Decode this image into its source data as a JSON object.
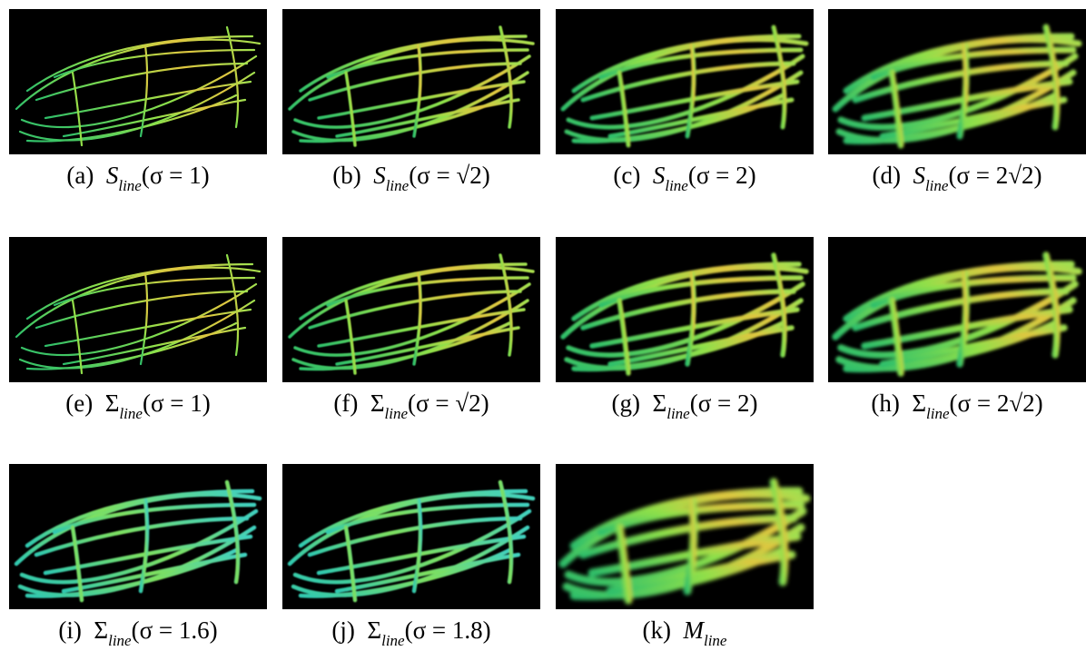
{
  "panels": [
    {
      "label": "(a)",
      "symbol": "S",
      "subscript": "line",
      "argument": "(σ = 1)"
    },
    {
      "label": "(b)",
      "symbol": "S",
      "subscript": "line",
      "argument": "(σ = √2)"
    },
    {
      "label": "(c)",
      "symbol": "S",
      "subscript": "line",
      "argument": "(σ = 2)"
    },
    {
      "label": "(d)",
      "symbol": "S",
      "subscript": "line",
      "argument": "(σ = 2√2)"
    },
    {
      "label": "(e)",
      "symbol": "Σ",
      "subscript": "line",
      "argument": "(σ = 1)"
    },
    {
      "label": "(f)",
      "symbol": "Σ",
      "subscript": "line",
      "argument": "(σ = √2)"
    },
    {
      "label": "(g)",
      "symbol": "Σ",
      "subscript": "line",
      "argument": "(σ = 2)"
    },
    {
      "label": "(h)",
      "symbol": "Σ",
      "subscript": "line",
      "argument": "(σ = 2√2)"
    },
    {
      "label": "(i)",
      "symbol": "Σ",
      "subscript": "line",
      "argument": "(σ = 1.6)"
    },
    {
      "label": "(j)",
      "symbol": "Σ",
      "subscript": "line",
      "argument": "(σ = 1.8)"
    },
    {
      "label": "(k)",
      "symbol": "M",
      "subscript": "line"
    }
  ]
}
